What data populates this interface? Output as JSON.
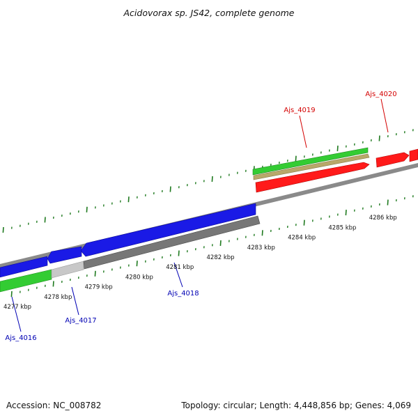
{
  "title": "Acidovorax sp. JS42, complete genome",
  "footer": {
    "accession": "Accession: NC_008782",
    "summary": "Topology: circular; Length: 4,448,856 bp; Genes: 4,069"
  },
  "colors": {
    "forward_label": "#d40000",
    "reverse_label": "#0000b4",
    "tick": "#1f7a1f",
    "backbone": "#8a8a8a",
    "red_gene": "#ff1a1a",
    "green_gene": "#33cc33",
    "tan_gene": "#b8a86a",
    "blue_gene": "#1a1ae6",
    "gray_gene": "#777777",
    "lightgray_gene": "#c8c8c8"
  },
  "scale": {
    "unit": "kbp",
    "ticks": [
      {
        "value": 4277,
        "label": "4277 kbp"
      },
      {
        "value": 4278,
        "label": "4278 kbp"
      },
      {
        "value": 4279,
        "label": "4279 kbp"
      },
      {
        "value": 4280,
        "label": "4280 kbp"
      },
      {
        "value": 4281,
        "label": "4281 kbp"
      },
      {
        "value": 4282,
        "label": "4282 kbp"
      },
      {
        "value": 4283,
        "label": "4283 kbp"
      },
      {
        "value": 4284,
        "label": "4284 kbp"
      },
      {
        "value": 4285,
        "label": "4285 kbp"
      },
      {
        "value": 4286,
        "label": "4286 kbp"
      }
    ]
  },
  "labels": {
    "ajs_4016": "Ajs_4016",
    "ajs_4017": "Ajs_4017",
    "ajs_4018": "Ajs_4018",
    "ajs_4019": "Ajs_4019",
    "ajs_4020": "Ajs_4020"
  }
}
